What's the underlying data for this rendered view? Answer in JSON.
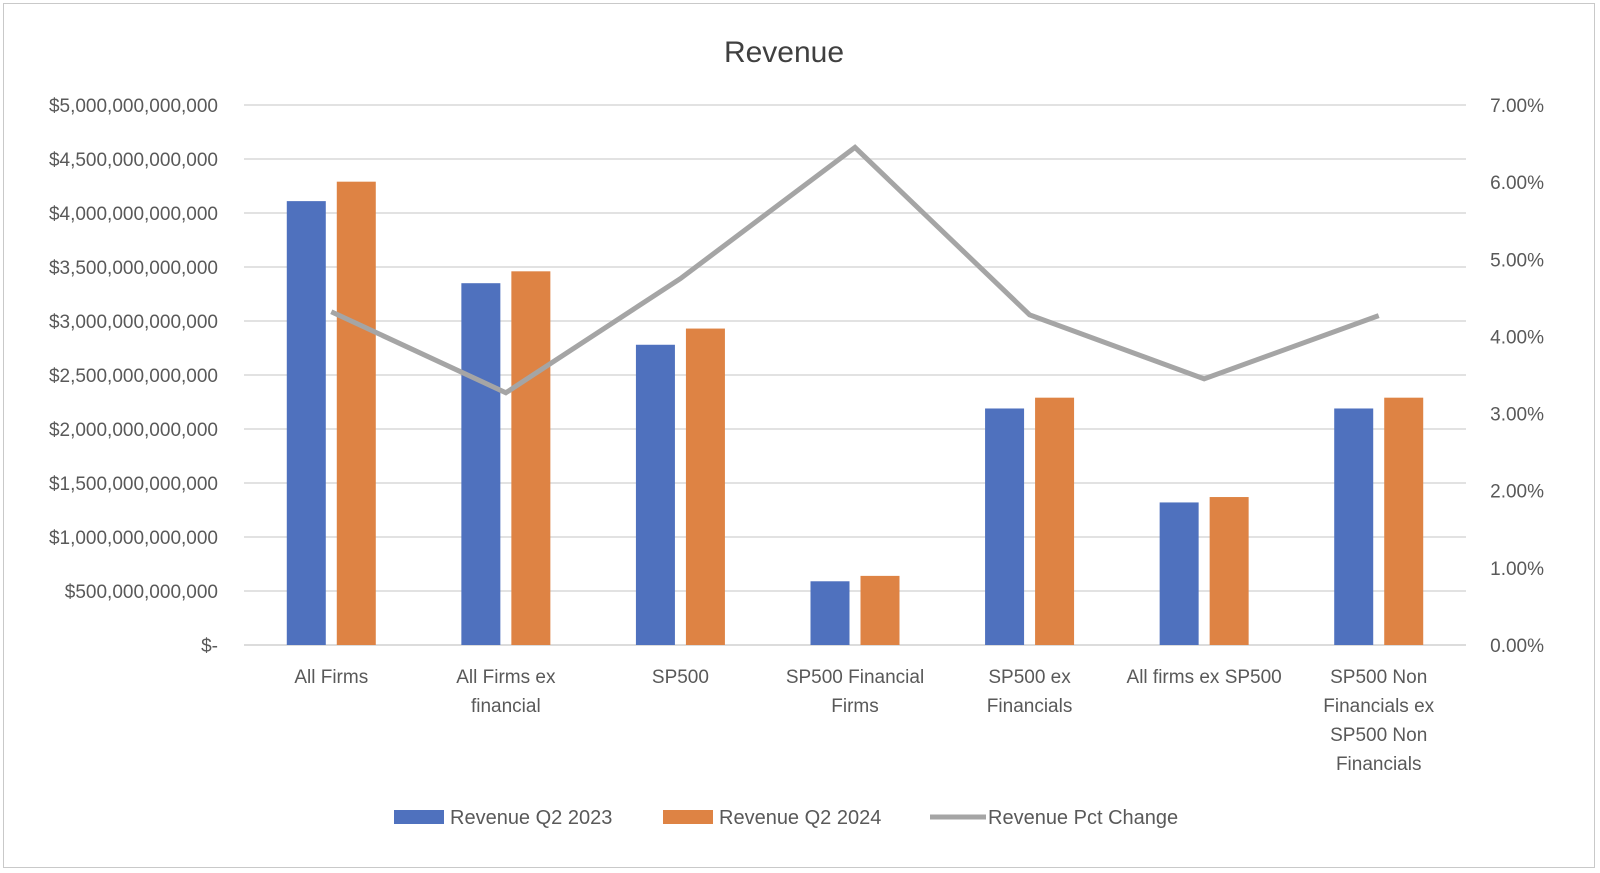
{
  "chart_data": {
    "type": "bar",
    "title": "Revenue",
    "categories": [
      [
        "All Firms"
      ],
      [
        "All Firms ex",
        "financial"
      ],
      [
        "SP500"
      ],
      [
        "SP500 Financial",
        "Firms"
      ],
      [
        "SP500 ex",
        "Financials"
      ],
      [
        "All firms ex SP500"
      ],
      [
        "SP500 Non",
        "Financials ex",
        "SP500 Non",
        "Financials"
      ]
    ],
    "series": [
      {
        "name": "Revenue Q2 2023",
        "type": "bar",
        "axis": "left",
        "color": "#4f71be",
        "values": [
          4110000000000,
          3350000000000,
          2780000000000,
          590000000000,
          2190000000000,
          1320000000000,
          2190000000000
        ]
      },
      {
        "name": "Revenue Q2 2024",
        "type": "bar",
        "axis": "left",
        "color": "#de8344",
        "values": [
          4290000000000,
          3460000000000,
          2930000000000,
          640000000000,
          2290000000000,
          1370000000000,
          2290000000000
        ]
      },
      {
        "name": "Revenue Pct Change",
        "type": "line",
        "axis": "right",
        "color": "#a5a5a5",
        "values": [
          0.0432,
          0.0327,
          0.0475,
          0.0645,
          0.0428,
          0.0345,
          0.0427
        ]
      }
    ],
    "y_left": {
      "lim": [
        0,
        5000000000000
      ],
      "ticks": [
        0,
        500000000000,
        1000000000000,
        1500000000000,
        2000000000000,
        2500000000000,
        3000000000000,
        3500000000000,
        4000000000000,
        4500000000000,
        5000000000000
      ],
      "tick_labels": [
        "$-",
        "$500,000,000,000",
        "$1,000,000,000,000",
        "$1,500,000,000,000",
        "$2,000,000,000,000",
        "$2,500,000,000,000",
        "$3,000,000,000,000",
        "$3,500,000,000,000",
        "$4,000,000,000,000",
        "$4,500,000,000,000",
        "$5,000,000,000,000"
      ]
    },
    "y_right": {
      "lim": [
        0,
        0.07
      ],
      "ticks": [
        0,
        0.01,
        0.02,
        0.03,
        0.04,
        0.05,
        0.06,
        0.07
      ],
      "tick_labels": [
        "0.00%",
        "1.00%",
        "2.00%",
        "3.00%",
        "4.00%",
        "5.00%",
        "6.00%",
        "7.00%"
      ]
    },
    "grid": true,
    "legend_position": "bottom"
  }
}
